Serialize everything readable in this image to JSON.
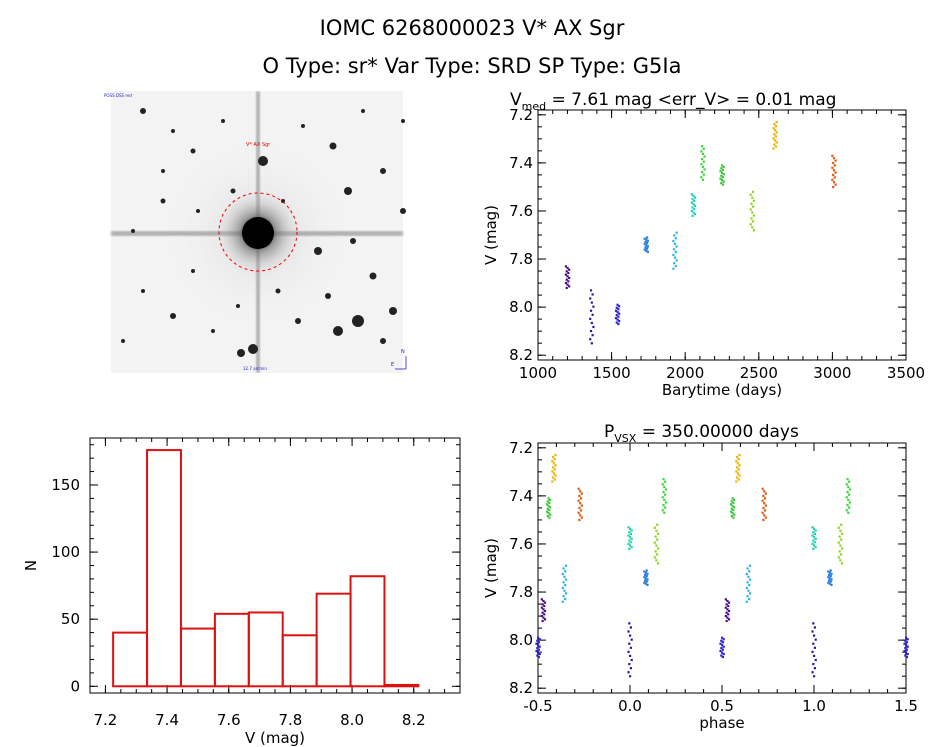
{
  "header": {
    "title": "IOMC 6268000023    V* AX Sgr",
    "subtitle": "O Type: sr*  Var Type: SRD  SP Type: G5Ia"
  },
  "image_panel": {
    "target_label": "V* AX Sgr",
    "top_left_label": "POSS DSS red",
    "bottom_center_label": "12.7 arcmin",
    "compass_n": "N",
    "compass_e": "E"
  },
  "lc_title": {
    "sym": "V",
    "sub": "med",
    "rest": " = 7.61 mag <err_V> = 0.01 mag"
  },
  "phase_title": {
    "sym": "P",
    "sub": "VSX",
    "rest": " = 350.00000 days"
  },
  "colors": {
    "histogram": "#dd1111",
    "sky_circle": "#ee0000",
    "label_blue": "#2222cc"
  },
  "chart_data": [
    {
      "type": "scatter",
      "title": "V_med = 7.61 mag <err_V> = 0.01 mag",
      "xlabel": "Barytime (days)",
      "ylabel": "V (mag)",
      "xlim": [
        1000,
        3500
      ],
      "ylim": [
        8.22,
        7.18
      ],
      "inverted_y": true,
      "xticks": [
        1000,
        1500,
        2000,
        2500,
        3000,
        3500
      ],
      "yticks": [
        7.2,
        7.4,
        7.6,
        7.8,
        8.0,
        8.2
      ],
      "groups": [
        {
          "x": 1200,
          "y_range": [
            7.83,
            7.92
          ],
          "color": "#4a0d80"
        },
        {
          "x": 1365,
          "y_range": [
            7.93,
            8.15
          ],
          "color": "#3a14a0"
        },
        {
          "x": 1540,
          "y_range": [
            7.99,
            8.07
          ],
          "color": "#2a22d0"
        },
        {
          "x": 1735,
          "y_range": [
            7.71,
            7.77
          ],
          "color": "#2a7ee0"
        },
        {
          "x": 1930,
          "y_range": [
            7.69,
            7.84
          ],
          "color": "#2ab4e8"
        },
        {
          "x": 2055,
          "y_range": [
            7.53,
            7.62
          ],
          "color": "#22d2b0"
        },
        {
          "x": 2120,
          "y_range": [
            7.33,
            7.47
          ],
          "color": "#3ad83a"
        },
        {
          "x": 2250,
          "y_range": [
            7.41,
            7.49
          ],
          "color": "#3ac63a"
        },
        {
          "x": 2455,
          "y_range": [
            7.52,
            7.68
          ],
          "color": "#8ed424"
        },
        {
          "x": 2610,
          "y_range": [
            7.23,
            7.34
          ],
          "color": "#f0b200"
        },
        {
          "x": 3010,
          "y_range": [
            7.37,
            7.5
          ],
          "color": "#e05a10"
        }
      ]
    },
    {
      "type": "bar",
      "xlabel": "V (mag)",
      "ylabel": "N",
      "xlim": [
        7.15,
        8.35
      ],
      "ylim": [
        -5,
        185
      ],
      "xticks": [
        7.2,
        7.4,
        7.6,
        7.8,
        8.0,
        8.2
      ],
      "yticks": [
        0,
        50,
        100,
        150
      ],
      "bin_edges": [
        7.225,
        7.335,
        7.445,
        7.555,
        7.665,
        7.775,
        7.885,
        7.995,
        8.105,
        8.215
      ],
      "values": [
        40,
        176,
        43,
        54,
        55,
        38,
        69,
        82,
        1
      ]
    },
    {
      "type": "scatter",
      "title": "P_VSX = 350.00000 days",
      "xlabel": "phase",
      "ylabel": "V (mag)",
      "xlim": [
        -0.5,
        1.5
      ],
      "ylim": [
        8.22,
        7.18
      ],
      "inverted_y": true,
      "xticks": [
        -0.5,
        0.0,
        0.5,
        1.0,
        1.5
      ],
      "yticks": [
        7.2,
        7.4,
        7.6,
        7.8,
        8.0,
        8.2
      ],
      "groups": [
        {
          "phase": 0.529,
          "y_range": [
            7.83,
            7.92
          ],
          "color": "#4a0d80"
        },
        {
          "phase": 0.0,
          "y_range": [
            7.93,
            8.15
          ],
          "color": "#3a14a0"
        },
        {
          "phase": 0.5,
          "y_range": [
            7.99,
            8.07
          ],
          "color": "#2a22d0"
        },
        {
          "phase": 0.086,
          "y_range": [
            7.71,
            7.77
          ],
          "color": "#2a7ee0"
        },
        {
          "phase": 0.643,
          "y_range": [
            7.69,
            7.84
          ],
          "color": "#2ab4e8"
        },
        {
          "phase": 0.0,
          "y_range": [
            7.53,
            7.62
          ],
          "color": "#22d2b0"
        },
        {
          "phase": 0.186,
          "y_range": [
            7.33,
            7.47
          ],
          "color": "#3ad83a"
        },
        {
          "phase": 0.557,
          "y_range": [
            7.41,
            7.49
          ],
          "color": "#3ac63a"
        },
        {
          "phase": 0.143,
          "y_range": [
            7.52,
            7.68
          ],
          "color": "#8ed424"
        },
        {
          "phase": 0.586,
          "y_range": [
            7.23,
            7.34
          ],
          "color": "#f0b200"
        },
        {
          "phase": 0.729,
          "y_range": [
            7.37,
            7.5
          ],
          "color": "#e05a10"
        }
      ]
    }
  ]
}
